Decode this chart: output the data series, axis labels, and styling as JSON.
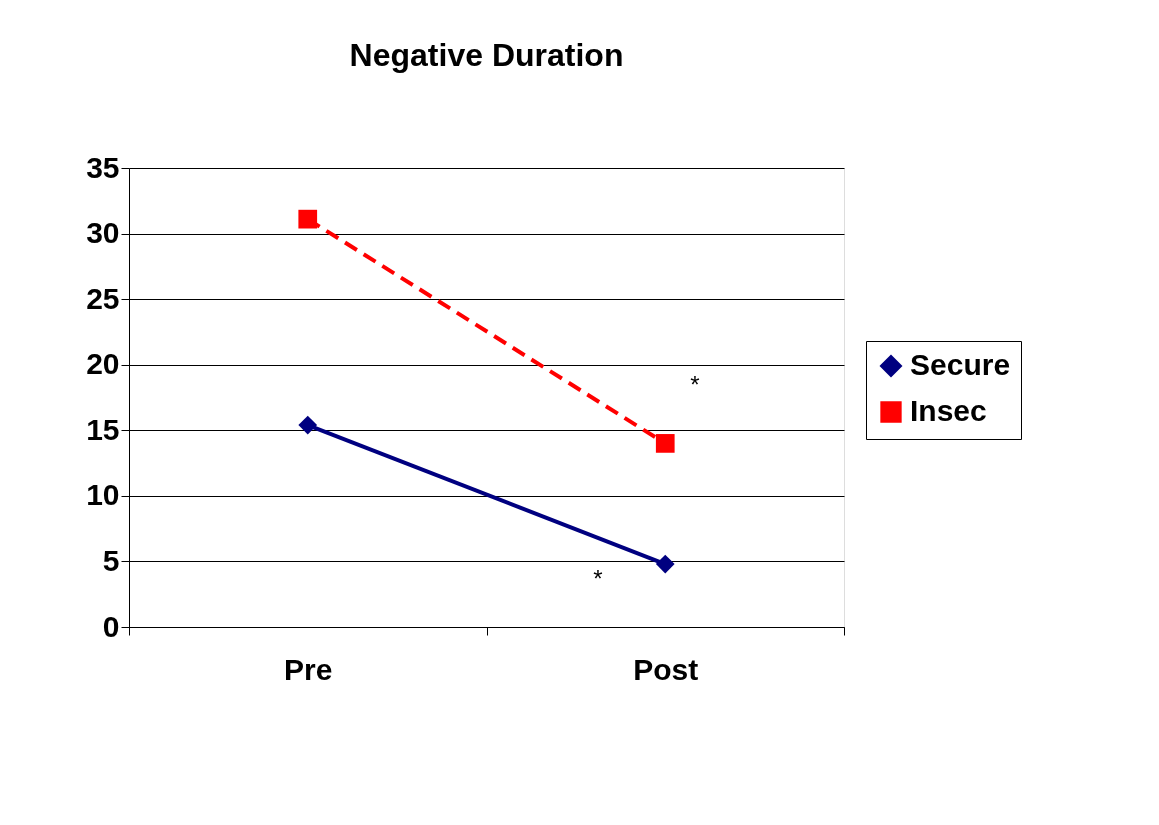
{
  "chart_data": {
    "type": "line",
    "title": "Negative Duration",
    "categories": [
      "Pre",
      "Post"
    ],
    "series": [
      {
        "name": "Secure",
        "color": "#000080",
        "values": [
          15.4,
          4.8
        ],
        "marker": "diamond",
        "line_style": "solid"
      },
      {
        "name": "Insec",
        "color": "#ff0000",
        "values": [
          31.1,
          14.0
        ],
        "marker": "square",
        "line_style": "dashed"
      }
    ],
    "ylim": [
      0,
      35
    ],
    "yticks": [
      0,
      5,
      10,
      15,
      20,
      25,
      30,
      35
    ],
    "grid": "y",
    "legend": "right",
    "annotations": [
      "*",
      "*"
    ]
  }
}
